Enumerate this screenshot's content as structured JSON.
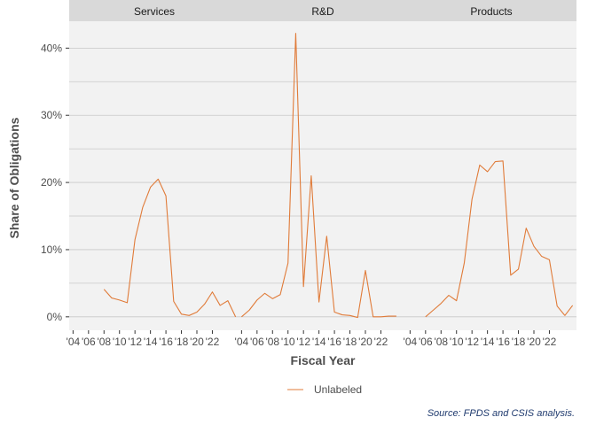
{
  "chart_data": {
    "type": "line",
    "panels": [
      "Services",
      "R&D",
      "Products"
    ],
    "xlabel": "Fiscal Year",
    "ylabel": "Share of Obligations",
    "x_tick_labels": [
      "'04",
      "'06",
      "'08",
      "'10",
      "'12",
      "'14",
      "'16",
      "'18",
      "'20",
      "'22"
    ],
    "x_ticks": [
      2004,
      2006,
      2008,
      2010,
      2012,
      2014,
      2016,
      2018,
      2020,
      2022
    ],
    "xlim": [
      2003.5,
      2025.5
    ],
    "y_tick_labels": [
      "0%",
      "10%",
      "20%",
      "30%",
      "40%"
    ],
    "y_ticks": [
      0,
      0.1,
      0.2,
      0.3,
      0.4
    ],
    "ylim": [
      -0.02,
      0.44
    ],
    "grid": true,
    "legend_position": "bottom",
    "series": [
      {
        "name": "Unlabeled",
        "color": "#E07B39",
        "values_by_panel": {
          "Services": [
            [
              2008,
              0.041
            ],
            [
              2009,
              0.028
            ],
            [
              2010,
              0.025
            ],
            [
              2011,
              0.021
            ],
            [
              2012,
              0.115
            ],
            [
              2013,
              0.163
            ],
            [
              2014,
              0.193
            ],
            [
              2015,
              0.205
            ],
            [
              2016,
              0.18
            ],
            [
              2017,
              0.023
            ],
            [
              2018,
              0.004
            ],
            [
              2019,
              0.002
            ],
            [
              2020,
              0.007
            ],
            [
              2021,
              0.019
            ],
            [
              2022,
              0.037
            ],
            [
              2023,
              0.017
            ],
            [
              2024,
              0.024
            ],
            [
              2025,
              0.0
            ]
          ],
          "R&D": [
            [
              2004,
              0.0
            ],
            [
              2005,
              0.01
            ],
            [
              2006,
              0.025
            ],
            [
              2007,
              0.035
            ],
            [
              2008,
              0.027
            ],
            [
              2009,
              0.033
            ],
            [
              2010,
              0.08
            ],
            [
              2011,
              0.422
            ],
            [
              2012,
              0.045
            ],
            [
              2013,
              0.21
            ],
            [
              2014,
              0.022
            ],
            [
              2015,
              0.12
            ],
            [
              2016,
              0.007
            ],
            [
              2017,
              0.003
            ],
            [
              2018,
              0.002
            ],
            [
              2019,
              -0.001
            ],
            [
              2020,
              0.069
            ],
            [
              2021,
              0.0
            ],
            [
              2022,
              0.0
            ],
            [
              2023,
              0.001
            ],
            [
              2024,
              0.001
            ]
          ],
          "Products": [
            [
              2006,
              0.0
            ],
            [
              2007,
              0.01
            ],
            [
              2008,
              0.02
            ],
            [
              2009,
              0.032
            ],
            [
              2010,
              0.024
            ],
            [
              2011,
              0.08
            ],
            [
              2012,
              0.175
            ],
            [
              2013,
              0.226
            ],
            [
              2014,
              0.216
            ],
            [
              2015,
              0.231
            ],
            [
              2016,
              0.232
            ],
            [
              2017,
              0.062
            ],
            [
              2018,
              0.071
            ],
            [
              2019,
              0.132
            ],
            [
              2020,
              0.105
            ],
            [
              2021,
              0.09
            ],
            [
              2022,
              0.085
            ],
            [
              2023,
              0.016
            ],
            [
              2024,
              0.002
            ],
            [
              2025,
              0.017
            ]
          ]
        }
      }
    ],
    "caption": "Source: FPDS and CSIS analysis."
  }
}
